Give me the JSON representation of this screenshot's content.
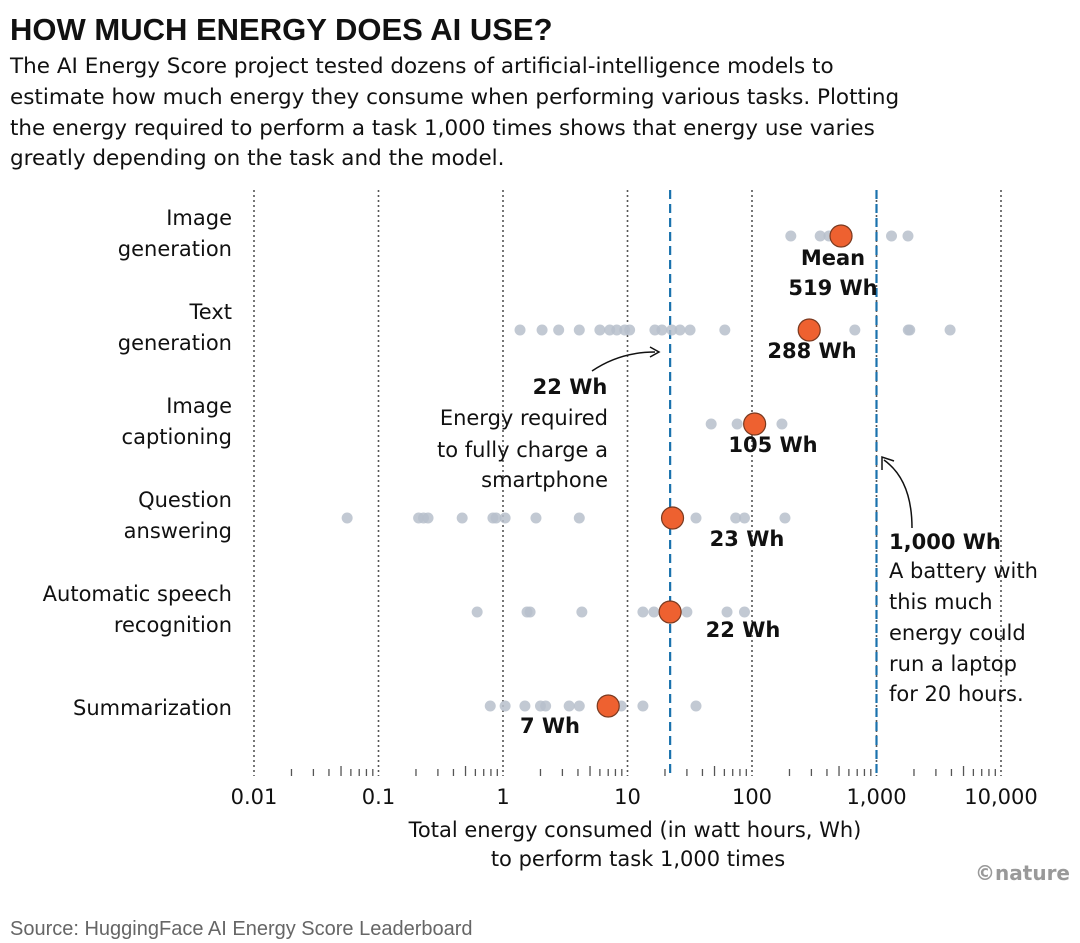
{
  "title": "HOW MUCH ENERGY DOES AI USE?",
  "subtitle": [
    "The AI Energy Score project tested dozens of artificial-intelligence models to",
    "estimate how much energy they consume when performing various tasks. Plotting",
    "the energy required to perform a task 1,000 times shows that energy use varies",
    "greatly depending on the task and the model."
  ],
  "source": "Source: HuggingFace AI Energy Score Leaderboard",
  "logo": "©nature",
  "colors": {
    "mean": "#ee6130",
    "model": "#b7c0cb",
    "reference_line": "#1a72ad",
    "grid": "#555555"
  },
  "chart_data": {
    "type": "scatter",
    "xscale": "log",
    "xlim": [
      0.01,
      10000
    ],
    "grid": true,
    "xlabel": [
      "Total energy consumed (in watt hours, Wh)",
      "to perform task 1,000 times"
    ],
    "xticks": [
      0.01,
      0.1,
      1,
      10,
      100,
      1000,
      10000
    ],
    "xtick_labels": [
      "0.01",
      "0.1",
      "1",
      "10",
      "100",
      "1,000",
      "10,000"
    ],
    "categories": [
      {
        "label": [
          "Image",
          "generation"
        ],
        "mean": 519,
        "mean_label": [
          "Mean",
          "519 Wh"
        ],
        "models": [
          205,
          353,
          415,
          1320,
          1790
        ]
      },
      {
        "label": [
          "Text",
          "generation"
        ],
        "mean": 288,
        "mean_label": [
          "288 Wh"
        ],
        "models": [
          1.37,
          2.06,
          2.8,
          4.1,
          6.0,
          7.2,
          8.2,
          9.5,
          10.4,
          16.6,
          18.9,
          22.7,
          26.4,
          31.8,
          60.5,
          670,
          1800,
          1850,
          3900
        ]
      },
      {
        "label": [
          "Image",
          "captioning"
        ],
        "mean": 105,
        "mean_label": [
          "105 Wh"
        ],
        "models": [
          47,
          76,
          174
        ]
      },
      {
        "label": [
          "Question",
          "answering"
        ],
        "mean": 23,
        "mean_label": [
          "23 Wh"
        ],
        "models": [
          0.056,
          0.21,
          0.23,
          0.25,
          0.47,
          0.83,
          0.88,
          1.04,
          1.84,
          4.1,
          35.5,
          74,
          87,
          184
        ]
      },
      {
        "label": [
          "Automatic speech",
          "recognition"
        ],
        "mean": 22,
        "mean_label": [
          "22 Wh"
        ],
        "models": [
          0.62,
          1.56,
          1.65,
          4.3,
          13.3,
          16.3,
          30,
          63,
          87
        ]
      },
      {
        "label": [
          "Summarization"
        ],
        "mean": 7,
        "mean_label": [
          "7 Wh"
        ],
        "models": [
          0.79,
          1.04,
          1.5,
          2.0,
          2.2,
          3.4,
          4.1,
          8.9,
          13.3,
          35.5
        ]
      }
    ],
    "reference_lines": [
      {
        "value": 22,
        "label": [
          "22 Wh",
          "Energy required",
          "to fully charge a",
          "smartphone"
        ]
      },
      {
        "value": 1000,
        "label": [
          "1,000 Wh",
          "A battery with",
          "this much",
          "energy could",
          "run a laptop",
          "for 20 hours."
        ]
      }
    ]
  }
}
